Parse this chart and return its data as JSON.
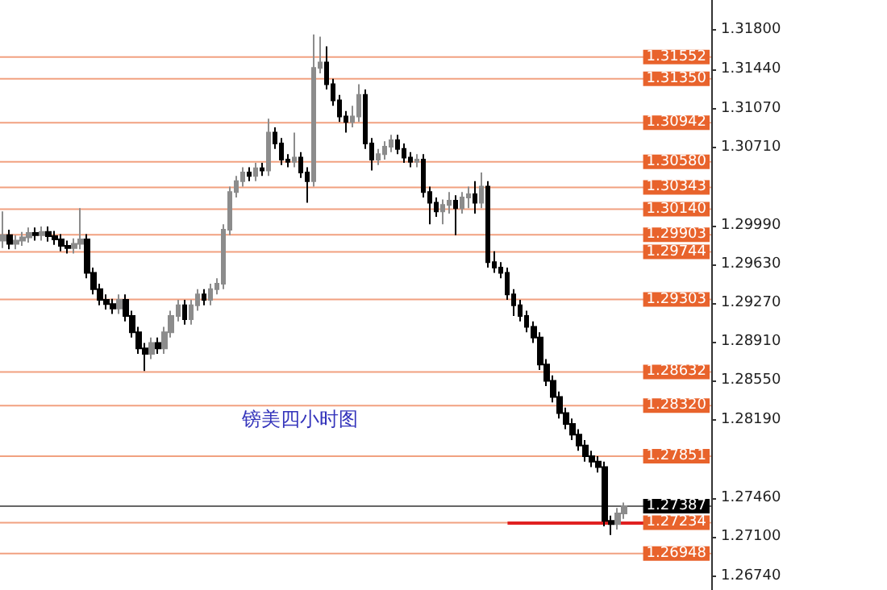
{
  "chart_data": {
    "type": "candlestick",
    "title": "镑美四小时图",
    "categories": [
      null,
      null,
      null,
      null,
      null,
      null,
      null,
      null,
      null,
      null,
      null,
      null,
      null,
      null,
      null,
      null,
      null,
      null,
      null,
      null,
      null,
      null,
      null,
      null,
      null,
      null,
      null,
      null,
      null,
      null,
      null,
      null,
      null,
      null,
      null,
      null,
      null,
      null,
      null,
      null,
      null,
      null,
      null,
      null,
      null,
      null,
      null,
      null,
      null,
      null,
      null,
      null,
      null,
      null,
      null,
      null,
      null,
      null,
      null,
      null,
      null,
      null,
      null,
      null,
      null,
      null,
      null,
      null,
      null,
      null,
      null,
      null,
      null,
      null,
      null,
      null,
      null,
      null,
      null,
      null,
      null,
      null,
      null,
      null,
      null,
      null,
      null,
      null,
      null,
      null,
      null,
      null,
      null,
      null,
      null,
      null,
      null,
      null,
      null,
      null,
      null,
      null,
      null,
      null,
      null,
      null,
      null,
      null,
      null,
      null
    ],
    "ylim": [
      1.2661,
      1.3208
    ],
    "yticks": [
      {
        "value": 1.318,
        "label": "1.31800"
      },
      {
        "value": 1.3144,
        "label": "1.31440"
      },
      {
        "value": 1.3107,
        "label": "1.31070"
      },
      {
        "value": 1.3071,
        "label": "1.30710"
      },
      {
        "value": 1.2999,
        "label": "1.29990"
      },
      {
        "value": 1.2963,
        "label": "1.29630"
      },
      {
        "value": 1.2927,
        "label": "1.29270"
      },
      {
        "value": 1.2891,
        "label": "1.28910"
      },
      {
        "value": 1.2855,
        "label": "1.28550"
      },
      {
        "value": 1.2819,
        "label": "1.28190"
      },
      {
        "value": 1.2746,
        "label": "1.27460"
      },
      {
        "value": 1.271,
        "label": "1.27100"
      },
      {
        "value": 1.2674,
        "label": "1.26740"
      }
    ],
    "grid": false,
    "series": [
      {
        "type": "candlestick",
        "colors": [
          "#8c8c8c",
          "#000000",
          "#8c8c8c",
          "#8c8c8c",
          "#8c8c8c",
          "#000000",
          "#8c8c8c",
          "#000000",
          "#000000",
          "#000000",
          "#000000",
          "#8c8c8c",
          "#8c8c8c",
          "#000000",
          "#000000",
          "#000000",
          "#000000",
          "#000000",
          "#8c8c8c",
          "#000000",
          "#000000",
          "#000000",
          "#000000",
          "#8c8c8c",
          "#000000",
          "#8c8c8c",
          "#8c8c8c",
          "#8c8c8c",
          "#000000",
          "#8c8c8c",
          "#8c8c8c",
          "#000000",
          "#8c8c8c",
          "#8c8c8c",
          "#8c8c8c",
          "#8c8c8c",
          "#8c8c8c",
          "#8c8c8c",
          "#000000",
          "#8c8c8c",
          "#000000",
          "#8c8c8c",
          "#000000",
          "#000000",
          "#000000",
          "#8c8c8c",
          "#000000",
          "#000000",
          "#8c8c8c",
          "#8c8c8c",
          "#000000",
          "#000000",
          "#000000",
          "#000000",
          "#8c8c8c",
          "#8c8c8c",
          "#000000",
          "#000000",
          "#8c8c8c",
          "#8c8c8c",
          "#8c8c8c",
          "#000000",
          "#000000",
          "#000000",
          "#8c8c8c",
          "#000000",
          "#000000",
          "#000000",
          "#8c8c8c",
          "#8c8c8c",
          "#000000",
          "#8c8c8c",
          "#8c8c8c",
          "#000000",
          "#8c8c8c",
          "#000000",
          "#000000",
          "#000000",
          "#000000",
          "#000000",
          "#000000",
          "#000000",
          "#000000",
          "#000000",
          "#000000",
          "#000000",
          "#000000",
          "#000000",
          "#000000",
          "#000000",
          "#000000",
          "#000000",
          "#000000",
          "#000000",
          "#000000",
          "#8c8c8c",
          "#8c8c8c",
          null,
          null,
          null,
          null,
          null,
          null,
          null,
          null,
          null,
          null,
          null,
          null,
          null
        ],
        "ohlc": [
          [
            1.2985,
            1.3012,
            1.2978,
            1.299
          ],
          [
            1.299,
            1.2995,
            1.2977,
            1.2982
          ],
          [
            1.2982,
            1.299,
            1.2977,
            1.2985
          ],
          [
            1.2985,
            1.2993,
            1.298,
            1.2988
          ],
          [
            1.2988,
            1.2997,
            1.2983,
            1.2992
          ],
          [
            1.2992,
            1.2997,
            1.2985,
            1.299
          ],
          [
            1.299,
            1.2998,
            1.2985,
            1.2993
          ],
          [
            1.2993,
            1.2998,
            1.2984,
            1.2989
          ],
          [
            1.2989,
            1.2994,
            1.2981,
            1.2986
          ],
          [
            1.2986,
            1.2991,
            1.2975,
            1.298
          ],
          [
            1.298,
            1.2985,
            1.2973,
            1.2978
          ],
          [
            1.2978,
            1.2987,
            1.2973,
            1.2982
          ],
          [
            1.2982,
            1.3015,
            1.2977,
            1.2986
          ],
          [
            1.2986,
            1.2991,
            1.295,
            1.2955
          ],
          [
            1.2955,
            1.296,
            1.2935,
            1.294
          ],
          [
            1.294,
            1.2945,
            1.2925,
            1.293
          ],
          [
            1.293,
            1.2935,
            1.2921,
            1.2926
          ],
          [
            1.2926,
            1.2931,
            1.2917,
            1.2922
          ],
          [
            1.2922,
            1.2935,
            1.2917,
            1.293
          ],
          [
            1.293,
            1.2935,
            1.291,
            1.2915
          ],
          [
            1.2915,
            1.292,
            1.2895,
            1.29
          ],
          [
            1.29,
            1.2905,
            1.288,
            1.2885
          ],
          [
            1.2885,
            1.289,
            1.2864,
            1.288
          ],
          [
            1.288,
            1.2895,
            1.2875,
            1.289
          ],
          [
            1.289,
            1.2895,
            1.288,
            1.2885
          ],
          [
            1.2885,
            1.2905,
            1.288,
            1.29
          ],
          [
            1.29,
            1.292,
            1.2895,
            1.2915
          ],
          [
            1.2915,
            1.293,
            1.291,
            1.2925
          ],
          [
            1.2925,
            1.293,
            1.2907,
            1.2912
          ],
          [
            1.2912,
            1.293,
            1.2907,
            1.2925
          ],
          [
            1.2925,
            1.294,
            1.292,
            1.2935
          ],
          [
            1.2935,
            1.294,
            1.2925,
            1.293
          ],
          [
            1.293,
            1.2945,
            1.2925,
            1.294
          ],
          [
            1.294,
            1.295,
            1.2935,
            1.2945
          ],
          [
            1.2945,
            1.3,
            1.294,
            1.2995
          ],
          [
            1.2995,
            1.3035,
            1.299,
            1.303
          ],
          [
            1.303,
            1.3045,
            1.3025,
            1.304
          ],
          [
            1.304,
            1.3053,
            1.3035,
            1.3048
          ],
          [
            1.3048,
            1.3053,
            1.304,
            1.3045
          ],
          [
            1.3045,
            1.3057,
            1.304,
            1.3052
          ],
          [
            1.3052,
            1.3057,
            1.3045,
            1.305
          ],
          [
            1.305,
            1.3098,
            1.3045,
            1.3085
          ],
          [
            1.3085,
            1.309,
            1.307,
            1.3075
          ],
          [
            1.3075,
            1.308,
            1.3055,
            1.306
          ],
          [
            1.306,
            1.3065,
            1.3053,
            1.3058
          ],
          [
            1.3058,
            1.3085,
            1.3053,
            1.3062
          ],
          [
            1.3062,
            1.3067,
            1.3043,
            1.3048
          ],
          [
            1.3048,
            1.3053,
            1.302,
            1.304
          ],
          [
            1.304,
            1.3176,
            1.3035,
            1.3145
          ],
          [
            1.3145,
            1.3174,
            1.314,
            1.315
          ],
          [
            1.315,
            1.3165,
            1.3125,
            1.313
          ],
          [
            1.313,
            1.3135,
            1.311,
            1.3115
          ],
          [
            1.3115,
            1.312,
            1.3095,
            1.31
          ],
          [
            1.31,
            1.3105,
            1.3085,
            1.3095
          ],
          [
            1.3095,
            1.311,
            1.309,
            1.31
          ],
          [
            1.31,
            1.313,
            1.3095,
            1.312
          ],
          [
            1.312,
            1.3125,
            1.307,
            1.3075
          ],
          [
            1.3075,
            1.308,
            1.305,
            1.306
          ],
          [
            1.306,
            1.307,
            1.3055,
            1.3065
          ],
          [
            1.3065,
            1.3077,
            1.306,
            1.3072
          ],
          [
            1.3072,
            1.3083,
            1.3067,
            1.3078
          ],
          [
            1.3078,
            1.3083,
            1.3065,
            1.307
          ],
          [
            1.307,
            1.3075,
            1.3057,
            1.3062
          ],
          [
            1.3062,
            1.3067,
            1.3053,
            1.3058
          ],
          [
            1.3058,
            1.3065,
            1.3053,
            1.306
          ],
          [
            1.306,
            1.3065,
            1.3025,
            1.303
          ],
          [
            1.303,
            1.3035,
            1.3,
            1.302
          ],
          [
            1.302,
            1.3025,
            1.3007,
            1.3012
          ],
          [
            1.3012,
            1.3023,
            1.3,
            1.3018
          ],
          [
            1.3018,
            1.303,
            1.301,
            1.3022
          ],
          [
            1.3022,
            1.3027,
            1.299,
            1.3015
          ],
          [
            1.3015,
            1.303,
            1.301,
            1.3025
          ],
          [
            1.3025,
            1.3035,
            1.3015,
            1.3028
          ],
          [
            1.3028,
            1.304,
            1.301,
            1.302
          ],
          [
            1.302,
            1.3048,
            1.3015,
            1.3035
          ],
          [
            1.3035,
            1.304,
            1.296,
            1.2965
          ],
          [
            1.2965,
            1.2975,
            1.2955,
            1.296
          ],
          [
            1.296,
            1.2965,
            1.295,
            1.2955
          ],
          [
            1.2955,
            1.296,
            1.293,
            1.2935
          ],
          [
            1.2935,
            1.294,
            1.2915,
            1.2925
          ],
          [
            1.2925,
            1.293,
            1.291,
            1.2915
          ],
          [
            1.2915,
            1.292,
            1.29,
            1.2905
          ],
          [
            1.2905,
            1.291,
            1.289,
            1.2895
          ],
          [
            1.2895,
            1.29,
            1.2865,
            1.287
          ],
          [
            1.287,
            1.2875,
            1.285,
            1.2855
          ],
          [
            1.2855,
            1.286,
            1.2835,
            1.284
          ],
          [
            1.284,
            1.2845,
            1.282,
            1.2825
          ],
          [
            1.2825,
            1.283,
            1.281,
            1.2815
          ],
          [
            1.2815,
            1.282,
            1.28,
            1.2805
          ],
          [
            1.2805,
            1.281,
            1.279,
            1.2795
          ],
          [
            1.2795,
            1.28,
            1.278,
            1.2785
          ],
          [
            1.2785,
            1.279,
            1.2775,
            1.278
          ],
          [
            1.278,
            1.2785,
            1.277,
            1.2775
          ],
          [
            1.2775,
            1.278,
            1.272,
            1.2725
          ],
          [
            1.2725,
            1.273,
            1.2712,
            1.2722
          ],
          [
            1.2722,
            1.2737,
            1.2717,
            1.2732
          ],
          [
            1.2732,
            1.2742,
            1.2727,
            1.27387
          ],
          null,
          null,
          null,
          null,
          null,
          null,
          null,
          null,
          null,
          null,
          null,
          null,
          null
        ]
      },
      {
        "type": "line",
        "color": "#e02020",
        "values": [
          null,
          null,
          null,
          null,
          null,
          null,
          null,
          null,
          null,
          null,
          null,
          null,
          null,
          null,
          null,
          null,
          null,
          null,
          null,
          null,
          null,
          null,
          null,
          null,
          null,
          null,
          null,
          null,
          null,
          null,
          null,
          null,
          null,
          null,
          null,
          null,
          null,
          null,
          null,
          null,
          null,
          null,
          null,
          null,
          null,
          null,
          null,
          null,
          null,
          null,
          null,
          null,
          null,
          null,
          null,
          null,
          null,
          null,
          null,
          null,
          null,
          null,
          null,
          null,
          null,
          null,
          null,
          null,
          null,
          null,
          null,
          null,
          null,
          null,
          null,
          null,
          null,
          null,
          1.2723,
          1.2723,
          1.2723,
          1.2723,
          1.2723,
          1.2723,
          1.2723,
          1.2723,
          1.2723,
          1.2723,
          1.2723,
          1.2723,
          1.2723,
          1.2723,
          1.2723,
          1.2723,
          1.2723,
          1.2723,
          1.2723,
          1.2723,
          1.2723,
          1.2723,
          1.2723,
          null,
          null,
          null,
          null,
          null,
          null,
          null,
          null,
          null
        ]
      }
    ],
    "ref_lines": [
      {
        "axis": "y",
        "value": 1.31552,
        "label": "1.31552",
        "color": "#e8632c"
      },
      {
        "axis": "y",
        "value": 1.3135,
        "label": "1.31350",
        "color": "#e8632c"
      },
      {
        "axis": "y",
        "value": 1.30942,
        "label": "1.30942",
        "color": "#e8632c"
      },
      {
        "axis": "y",
        "value": 1.3058,
        "label": "1.30580",
        "color": "#e8632c"
      },
      {
        "axis": "y",
        "value": 1.30343,
        "label": "1.30343",
        "color": "#e8632c"
      },
      {
        "axis": "y",
        "value": 1.3014,
        "label": "1.30140",
        "color": "#e8632c"
      },
      {
        "axis": "y",
        "value": 1.29903,
        "label": "1.29903",
        "color": "#e8632c"
      },
      {
        "axis": "y",
        "value": 1.29744,
        "label": "1.29744",
        "color": "#e8632c"
      },
      {
        "axis": "y",
        "value": 1.29303,
        "label": "1.29303",
        "color": "#e8632c"
      },
      {
        "axis": "y",
        "value": 1.28632,
        "label": "1.28632",
        "color": "#e8632c"
      },
      {
        "axis": "y",
        "value": 1.2832,
        "label": "1.28320",
        "color": "#e8632c"
      },
      {
        "axis": "y",
        "value": 1.27851,
        "label": "1.27851",
        "color": "#e8632c"
      },
      {
        "axis": "y",
        "value": 1.27387,
        "label": "1.27387",
        "color": "#000000"
      },
      {
        "axis": "y",
        "value": 1.27234,
        "label": "1.27234",
        "color": "#e8632c"
      },
      {
        "axis": "y",
        "value": 1.26948,
        "label": "1.26948",
        "color": "#e8632c"
      }
    ]
  }
}
